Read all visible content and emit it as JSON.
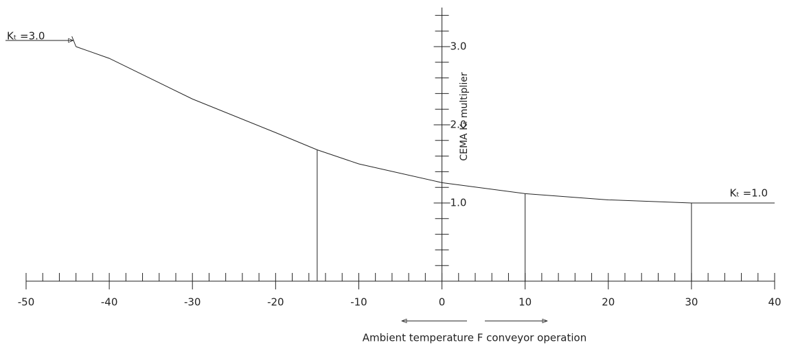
{
  "chart_data": {
    "type": "line",
    "y_label": "CEMA Kₜ multiplier",
    "x_label": "Ambient temperature F  conveyor operation",
    "series": [
      {
        "color": "#222222",
        "x": [
          -44,
          -40,
          -30,
          -20,
          -15,
          -10,
          0,
          10,
          20,
          30,
          40
        ],
        "values": [
          3.0,
          2.85,
          2.33,
          1.9,
          1.68,
          1.5,
          1.26,
          1.12,
          1.04,
          1.0,
          1.0
        ]
      }
    ],
    "drop_lines": [
      -15,
      10,
      30
    ],
    "annotations": [
      {
        "text": "Kₜ =3.0",
        "x": -44,
        "y": 3.0
      },
      {
        "text": "Kₜ =1.0",
        "x": 40,
        "y": 1.0
      }
    ],
    "xlim": [
      -50,
      40
    ],
    "xticks": [
      -50,
      -40,
      -30,
      -20,
      -10,
      0,
      10,
      20,
      30,
      40
    ],
    "xminorticks": [
      -48,
      -46,
      -44,
      -42,
      -38,
      -36,
      -34,
      -32,
      -28,
      -26,
      -24,
      -22,
      -18,
      -16,
      -14,
      -12,
      -8,
      -6,
      -4,
      -2,
      2,
      4,
      6,
      8,
      12,
      14,
      16,
      18,
      22,
      24,
      26,
      28,
      32,
      34,
      36,
      38
    ],
    "ylim": [
      0,
      3.5
    ],
    "yticks": [
      {
        "value": 1,
        "label": "1.0"
      },
      {
        "value": 2,
        "label": "2.0"
      },
      {
        "value": 3,
        "label": "3.0"
      }
    ],
    "yminorticks": [
      0.2,
      0.4,
      0.6,
      0.8,
      1.2,
      1.4,
      1.6,
      1.8,
      2.2,
      2.4,
      2.6,
      2.8,
      3.2,
      3.4
    ]
  }
}
